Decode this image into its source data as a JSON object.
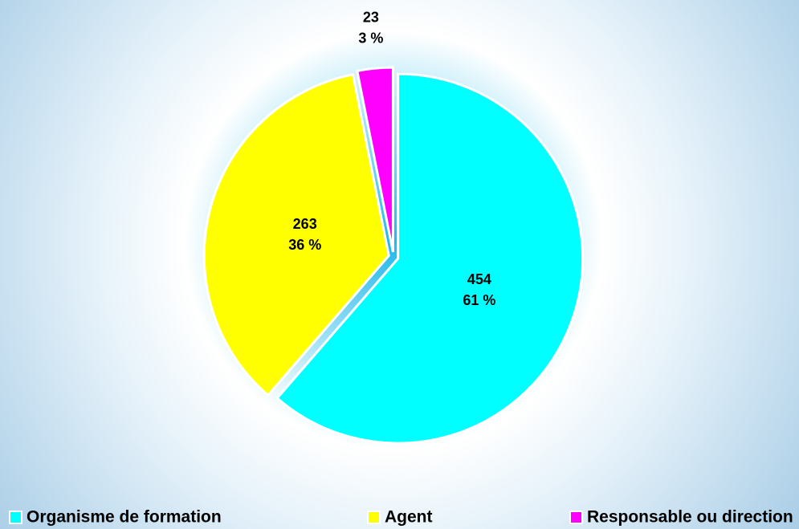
{
  "chart_data": {
    "type": "pie",
    "categories": [
      "Organisme de formation",
      "Agent",
      "Responsable ou direction"
    ],
    "values": [
      454,
      263,
      23
    ],
    "percentages": [
      61,
      36,
      3
    ],
    "percentage_labels": [
      "61 %",
      "36 %",
      "3 %"
    ],
    "colors": [
      "#00ffff",
      "#ffff00",
      "#ff00ff"
    ],
    "legend": "bottom"
  }
}
